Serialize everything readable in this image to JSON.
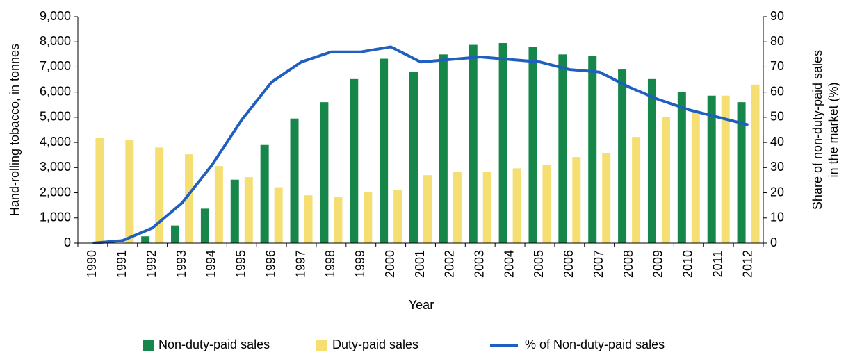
{
  "chart_data": {
    "type": "bar-line",
    "xlabel": "Year",
    "ylabel": "Hand-rolling tobacco, in tonnes",
    "y2label": [
      "Share of non-duty-paid sales",
      "in the market (%)"
    ],
    "categories": [
      "1990",
      "1991",
      "1992",
      "1993",
      "1994",
      "1995",
      "1996",
      "1997",
      "1998",
      "1999",
      "2000",
      "2001",
      "2002",
      "2003",
      "2004",
      "2005",
      "2006",
      "2007",
      "2008",
      "2009",
      "2010",
      "2011",
      "2012"
    ],
    "series": [
      {
        "name": "Non-duty-paid sales",
        "type": "bar",
        "color": "#16864a",
        "values": [
          0,
          0,
          270,
          700,
          1370,
          2520,
          3900,
          4950,
          5600,
          6520,
          7330,
          6820,
          7500,
          7880,
          7950,
          7800,
          7500,
          7450,
          6900,
          6520,
          6000,
          5860,
          5600
        ]
      },
      {
        "name": "Duty-paid sales",
        "type": "bar",
        "color": "#f6df72",
        "values": [
          4180,
          4100,
          3800,
          3530,
          3060,
          2620,
          2220,
          1900,
          1820,
          2020,
          2110,
          2700,
          2820,
          2830,
          2970,
          3120,
          3420,
          3570,
          4220,
          5000,
          5200,
          5860,
          6300
        ]
      },
      {
        "name": "% of Non-duty-paid sales",
        "type": "line",
        "axis": "y2",
        "color": "#1f5fbf",
        "values": [
          0,
          1,
          6,
          16,
          31,
          49,
          64,
          72,
          76,
          76,
          78,
          72,
          73,
          74,
          73,
          72,
          69,
          68,
          62,
          57,
          53,
          50,
          47
        ]
      }
    ],
    "ylim": [
      0,
      9000
    ],
    "yticks": [
      0,
      {
        "value": 1000,
        "label": "1,000"
      },
      {
        "value": 2000,
        "label": "2,000"
      },
      {
        "value": 3000,
        "label": "3,000"
      },
      {
        "value": 4000,
        "label": "4,000"
      },
      {
        "value": 5000,
        "label": "5,000"
      },
      {
        "value": 6000,
        "label": "6,000"
      },
      {
        "value": 7000,
        "label": "7,000"
      },
      {
        "value": 8000,
        "label": "8,000"
      },
      {
        "value": 9000,
        "label": "9,000"
      }
    ],
    "y2lim": [
      0,
      90
    ],
    "y2ticks": [
      0,
      10,
      20,
      30,
      40,
      50,
      60,
      70,
      80,
      90
    ],
    "legend": "bottom"
  }
}
